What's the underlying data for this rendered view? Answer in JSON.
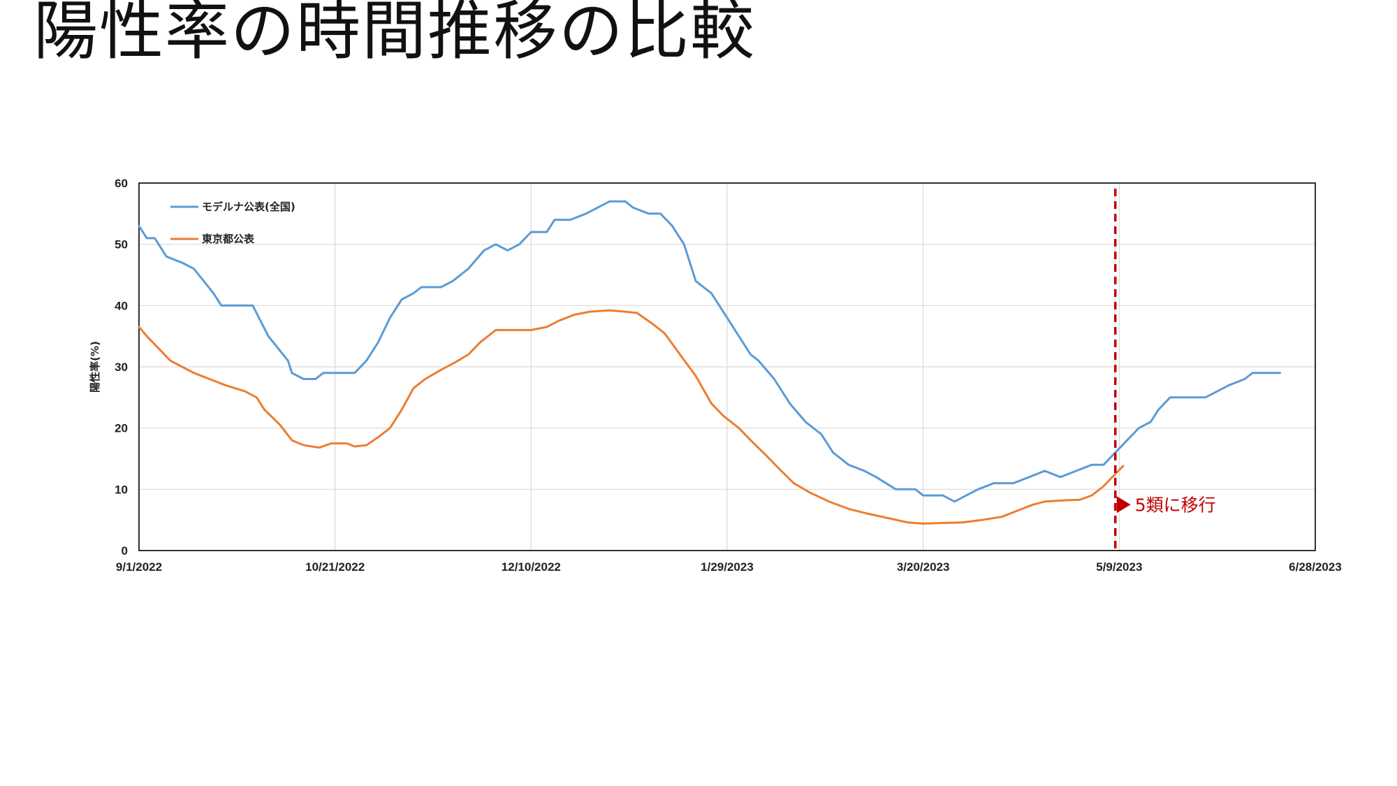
{
  "slide": {
    "title": "陽性率の時間推移の比較"
  },
  "colors": {
    "series1": "#5b9bd5",
    "series2": "#ed7d31",
    "marker": "#c00000",
    "grid": "#d9d9d9",
    "axis": "#000000"
  },
  "chart_data": {
    "type": "line",
    "title": "",
    "xlabel": "",
    "ylabel": "陽性率(%)",
    "ylim": [
      0,
      60
    ],
    "yticks": [
      0,
      10,
      20,
      30,
      40,
      50,
      60
    ],
    "xlim": [
      "2022-09-01",
      "2023-06-28"
    ],
    "xticks": [
      "2022-09-01",
      "2022-10-21",
      "2022-12-10",
      "2023-01-29",
      "2023-03-20",
      "2023-05-09",
      "2023-06-28"
    ],
    "xtick_labels": [
      "9/1/2022",
      "10/21/2022",
      "12/10/2022",
      "1/29/2023",
      "3/20/2023",
      "5/9/2023",
      "6/28/2023"
    ],
    "grid": true,
    "legend": "top-left",
    "series": [
      {
        "name": "モデルナ公表(全国)",
        "color": "#5b9bd5",
        "points": [
          [
            "2022-09-01",
            53
          ],
          [
            "2022-09-03",
            51
          ],
          [
            "2022-09-05",
            51
          ],
          [
            "2022-09-08",
            48
          ],
          [
            "2022-09-12",
            47
          ],
          [
            "2022-09-15",
            46
          ],
          [
            "2022-09-20",
            42
          ],
          [
            "2022-09-22",
            40
          ],
          [
            "2022-09-26",
            40
          ],
          [
            "2022-09-30",
            40
          ],
          [
            "2022-10-04",
            35
          ],
          [
            "2022-10-09",
            31
          ],
          [
            "2022-10-10",
            29
          ],
          [
            "2022-10-13",
            28
          ],
          [
            "2022-10-16",
            28
          ],
          [
            "2022-10-18",
            29
          ],
          [
            "2022-10-23",
            29
          ],
          [
            "2022-10-26",
            29
          ],
          [
            "2022-10-29",
            31
          ],
          [
            "2022-11-01",
            34
          ],
          [
            "2022-11-04",
            38
          ],
          [
            "2022-11-07",
            41
          ],
          [
            "2022-11-10",
            42
          ],
          [
            "2022-11-12",
            43
          ],
          [
            "2022-11-17",
            43
          ],
          [
            "2022-11-20",
            44
          ],
          [
            "2022-11-24",
            46
          ],
          [
            "2022-11-28",
            49
          ],
          [
            "2022-12-01",
            50
          ],
          [
            "2022-12-04",
            49
          ],
          [
            "2022-12-07",
            50
          ],
          [
            "2022-12-10",
            52
          ],
          [
            "2022-12-14",
            52
          ],
          [
            "2022-12-16",
            54
          ],
          [
            "2022-12-20",
            54
          ],
          [
            "2022-12-24",
            55
          ],
          [
            "2022-12-27",
            56
          ],
          [
            "2022-12-30",
            57
          ],
          [
            "2023-01-03",
            57
          ],
          [
            "2023-01-05",
            56
          ],
          [
            "2023-01-09",
            55
          ],
          [
            "2023-01-12",
            55
          ],
          [
            "2023-01-15",
            53
          ],
          [
            "2023-01-18",
            50
          ],
          [
            "2023-01-21",
            44
          ],
          [
            "2023-01-25",
            42
          ],
          [
            "2023-01-28",
            39
          ],
          [
            "2023-02-01",
            35
          ],
          [
            "2023-02-04",
            32
          ],
          [
            "2023-02-06",
            31
          ],
          [
            "2023-02-10",
            28
          ],
          [
            "2023-02-14",
            24
          ],
          [
            "2023-02-18",
            21
          ],
          [
            "2023-02-22",
            19
          ],
          [
            "2023-02-25",
            16
          ],
          [
            "2023-03-01",
            14
          ],
          [
            "2023-03-05",
            13
          ],
          [
            "2023-03-08",
            12
          ],
          [
            "2023-03-13",
            10
          ],
          [
            "2023-03-18",
            10
          ],
          [
            "2023-03-20",
            9
          ],
          [
            "2023-03-25",
            9
          ],
          [
            "2023-03-28",
            8
          ],
          [
            "2023-03-31",
            9
          ],
          [
            "2023-04-03",
            10
          ],
          [
            "2023-04-07",
            11
          ],
          [
            "2023-04-12",
            11
          ],
          [
            "2023-04-16",
            12
          ],
          [
            "2023-04-20",
            13
          ],
          [
            "2023-04-24",
            12
          ],
          [
            "2023-04-28",
            13
          ],
          [
            "2023-05-02",
            14
          ],
          [
            "2023-05-05",
            14
          ],
          [
            "2023-05-08",
            16
          ],
          [
            "2023-05-11",
            18
          ],
          [
            "2023-05-14",
            20
          ],
          [
            "2023-05-17",
            21
          ],
          [
            "2023-05-19",
            23
          ],
          [
            "2023-05-22",
            25
          ],
          [
            "2023-05-26",
            25
          ],
          [
            "2023-05-31",
            25
          ],
          [
            "2023-06-03",
            26
          ],
          [
            "2023-06-06",
            27
          ],
          [
            "2023-06-10",
            28
          ],
          [
            "2023-06-12",
            29
          ],
          [
            "2023-06-16",
            29
          ],
          [
            "2023-06-19",
            29
          ]
        ]
      },
      {
        "name": "東京都公表",
        "color": "#ed7d31",
        "points": [
          [
            "2022-09-01",
            36.5
          ],
          [
            "2022-09-03",
            35
          ],
          [
            "2022-09-06",
            33
          ],
          [
            "2022-09-09",
            31
          ],
          [
            "2022-09-12",
            30
          ],
          [
            "2022-09-15",
            29
          ],
          [
            "2022-09-19",
            28
          ],
          [
            "2022-09-23",
            27
          ],
          [
            "2022-09-28",
            26
          ],
          [
            "2022-10-01",
            25
          ],
          [
            "2022-10-03",
            23
          ],
          [
            "2022-10-07",
            20.5
          ],
          [
            "2022-10-10",
            18
          ],
          [
            "2022-10-13",
            17.2
          ],
          [
            "2022-10-17",
            16.8
          ],
          [
            "2022-10-20",
            17.5
          ],
          [
            "2022-10-24",
            17.5
          ],
          [
            "2022-10-26",
            17
          ],
          [
            "2022-10-29",
            17.2
          ],
          [
            "2022-11-01",
            18.5
          ],
          [
            "2022-11-04",
            20
          ],
          [
            "2022-11-07",
            23
          ],
          [
            "2022-11-10",
            26.5
          ],
          [
            "2022-11-13",
            28
          ],
          [
            "2022-11-17",
            29.5
          ],
          [
            "2022-11-20",
            30.5
          ],
          [
            "2022-11-24",
            32
          ],
          [
            "2022-11-27",
            34
          ],
          [
            "2022-12-01",
            36
          ],
          [
            "2022-12-06",
            36
          ],
          [
            "2022-12-10",
            36
          ],
          [
            "2022-12-14",
            36.5
          ],
          [
            "2022-12-17",
            37.5
          ],
          [
            "2022-12-21",
            38.5
          ],
          [
            "2022-12-25",
            39
          ],
          [
            "2022-12-30",
            39.2
          ],
          [
            "2023-01-03",
            39
          ],
          [
            "2023-01-06",
            38.8
          ],
          [
            "2023-01-10",
            37
          ],
          [
            "2023-01-13",
            35.5
          ],
          [
            "2023-01-17",
            32
          ],
          [
            "2023-01-21",
            28.5
          ],
          [
            "2023-01-25",
            24
          ],
          [
            "2023-01-28",
            22
          ],
          [
            "2023-02-01",
            20
          ],
          [
            "2023-02-04",
            18
          ],
          [
            "2023-02-08",
            15.5
          ],
          [
            "2023-02-11",
            13.5
          ],
          [
            "2023-02-15",
            11
          ],
          [
            "2023-02-19",
            9.5
          ],
          [
            "2023-02-24",
            8
          ],
          [
            "2023-03-01",
            6.8
          ],
          [
            "2023-03-06",
            6
          ],
          [
            "2023-03-11",
            5.3
          ],
          [
            "2023-03-16",
            4.6
          ],
          [
            "2023-03-20",
            4.4
          ],
          [
            "2023-03-25",
            4.5
          ],
          [
            "2023-03-30",
            4.6
          ],
          [
            "2023-04-04",
            5
          ],
          [
            "2023-04-09",
            5.5
          ],
          [
            "2023-04-13",
            6.5
          ],
          [
            "2023-04-17",
            7.5
          ],
          [
            "2023-04-20",
            8
          ],
          [
            "2023-04-25",
            8.2
          ],
          [
            "2023-04-29",
            8.3
          ],
          [
            "2023-05-02",
            9
          ],
          [
            "2023-05-05",
            10.5
          ],
          [
            "2023-05-08",
            12.5
          ],
          [
            "2023-05-10",
            13.8
          ]
        ]
      }
    ],
    "annotations": [
      {
        "type": "vline",
        "x": "2023-05-08",
        "color": "#c00000",
        "label": "5類に移行",
        "label_y": 7.5
      }
    ]
  }
}
